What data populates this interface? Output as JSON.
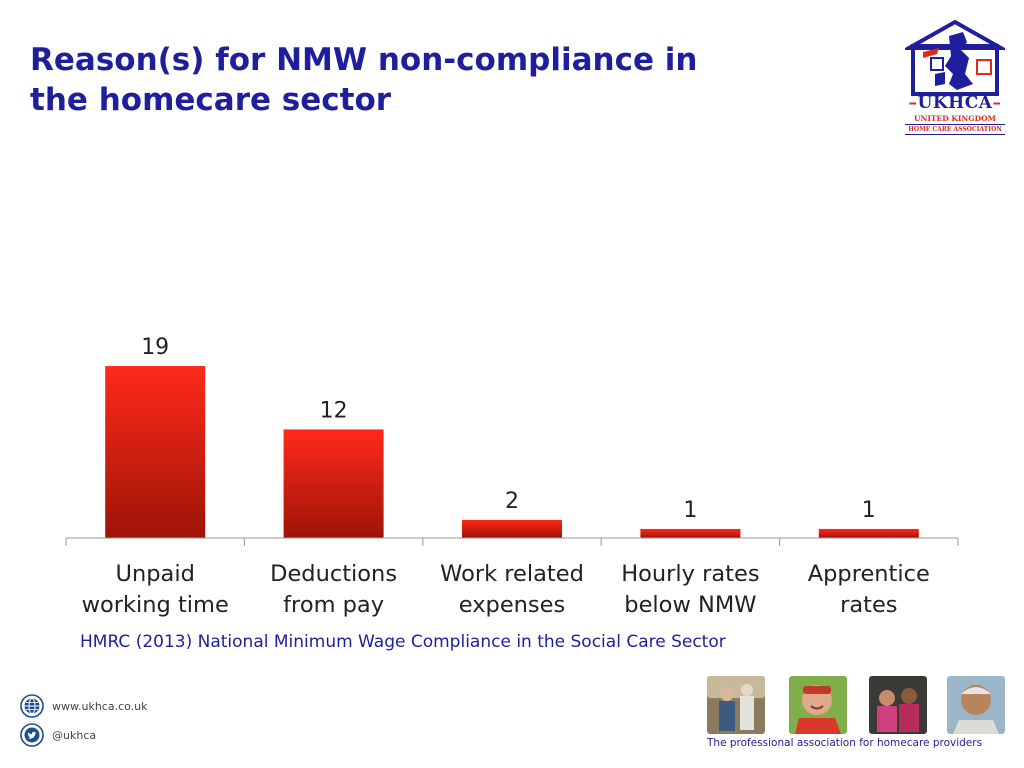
{
  "title_lines": [
    "Reason(s) for NMW non-compliance in",
    "the homecare sector"
  ],
  "logo": {
    "main": "UKHCA",
    "sub1": "UNITED KINGDOM",
    "sub2": "HOME CARE ASSOCIATION"
  },
  "source_note": "HMRC (2013) National Minimum Wage Compliance in the Social Care Sector",
  "footer": {
    "website": "www.ukhca.co.uk",
    "twitter": "@ukhca",
    "tagline": "The professional association for homecare providers"
  },
  "colors": {
    "title": "#1f1f9e",
    "bar_top": "#ff2a1a",
    "bar_bottom": "#9e1408",
    "axis": "#999999"
  },
  "icons": [
    "globe-icon",
    "twitter-icon",
    "house-logo-icon"
  ],
  "chart_data": {
    "type": "bar",
    "categories": [
      [
        "Unpaid",
        "working time"
      ],
      [
        "Deductions",
        "from pay"
      ],
      [
        "Work related",
        "expenses"
      ],
      [
        "Hourly rates",
        "below NMW"
      ],
      [
        "Apprentice",
        "rates"
      ]
    ],
    "values": [
      19,
      12,
      2,
      1,
      1
    ],
    "data_labels": [
      "19",
      "12",
      "2",
      "1",
      "1"
    ],
    "ylim": [
      0,
      20
    ],
    "grid": false,
    "legend": "none"
  }
}
